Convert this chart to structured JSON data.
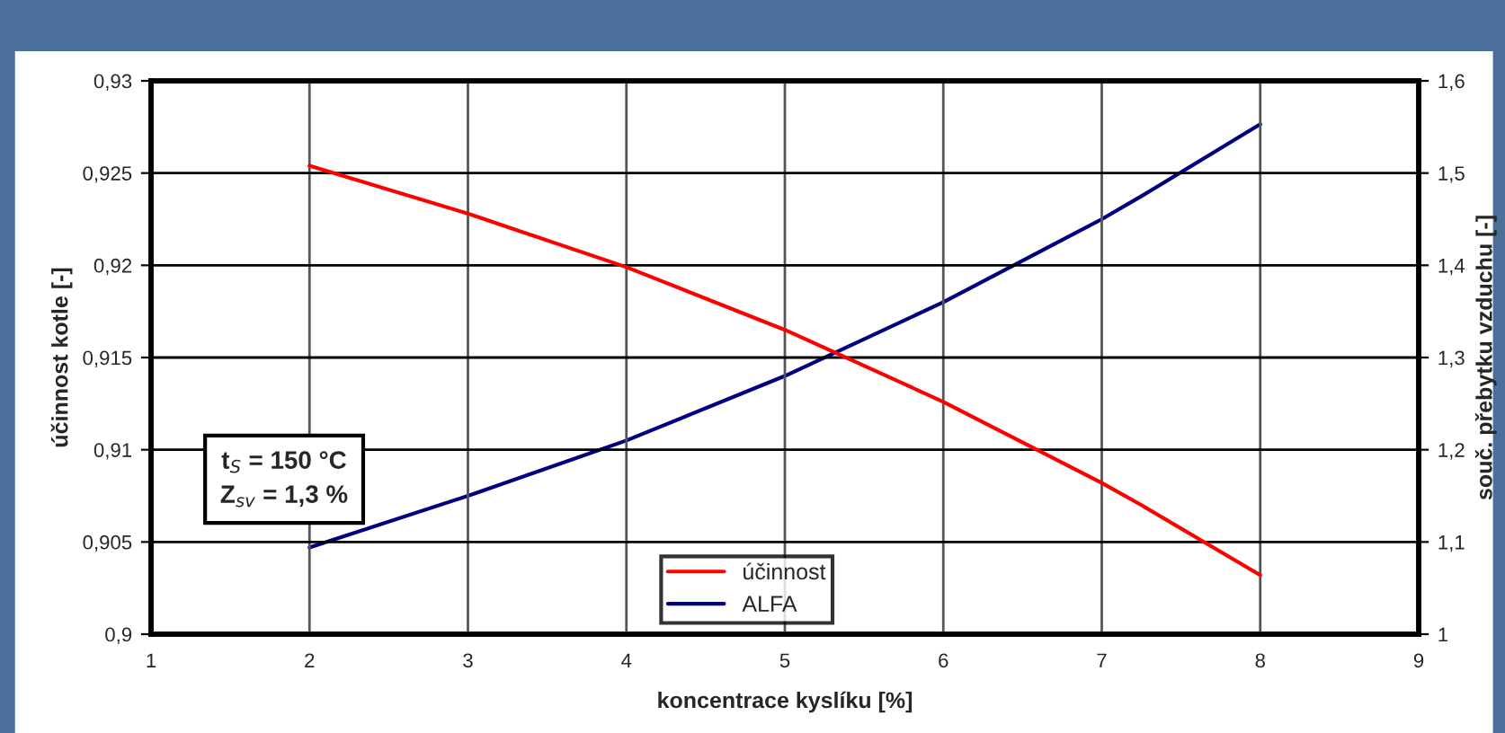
{
  "chart_data": {
    "type": "line",
    "xlabel": "koncentrace kyslíku [%]",
    "ylabel": "účinnost kotle [-]",
    "y2label": "souč. přebytku vzduchu [-]",
    "x": [
      2,
      3,
      4,
      5,
      6,
      7,
      7.25,
      8
    ],
    "series": [
      {
        "name": "účinnost",
        "color": "#ff0000",
        "values": [
          0.9254,
          0.9228,
          0.9199,
          0.9165,
          0.9126,
          0.9082,
          0.907,
          0.9032
        ]
      },
      {
        "name": "ALFA",
        "color": "#000080",
        "axis": "y2",
        "values": [
          1.094,
          1.15,
          1.21,
          1.28,
          1.36,
          1.45,
          1.475,
          1.553
        ]
      }
    ],
    "xlim": [
      1,
      9
    ],
    "xticks": [
      1,
      2,
      3,
      4,
      5,
      6,
      7,
      8,
      9
    ],
    "ylim": [
      0.9,
      0.93
    ],
    "yticks": [
      {
        "value": 0.9,
        "label": "0,9"
      },
      {
        "value": 0.905,
        "label": "0,905"
      },
      {
        "value": 0.91,
        "label": "0,91"
      },
      {
        "value": 0.915,
        "label": "0,915"
      },
      {
        "value": 0.92,
        "label": "0,92"
      },
      {
        "value": 0.925,
        "label": "0,925"
      },
      {
        "value": 0.93,
        "label": "0,93"
      }
    ],
    "y2lim": [
      1,
      1.6
    ],
    "y2ticks": [
      1,
      {
        "value": 1.1,
        "label": "1,1"
      },
      {
        "value": 1.2,
        "label": "1,2"
      },
      {
        "value": 1.3,
        "label": "1,3"
      },
      {
        "value": 1.4,
        "label": "1,4"
      },
      {
        "value": 1.5,
        "label": "1,5"
      },
      {
        "value": 1.6,
        "label": "1,6"
      }
    ],
    "annotations": [
      "t$_{S}$ = 150 °C\nZ$_{sv}$ = 1,3 %"
    ],
    "grid": true,
    "legend": "bottom",
    "marker": "none",
    "line_style": "solid"
  }
}
